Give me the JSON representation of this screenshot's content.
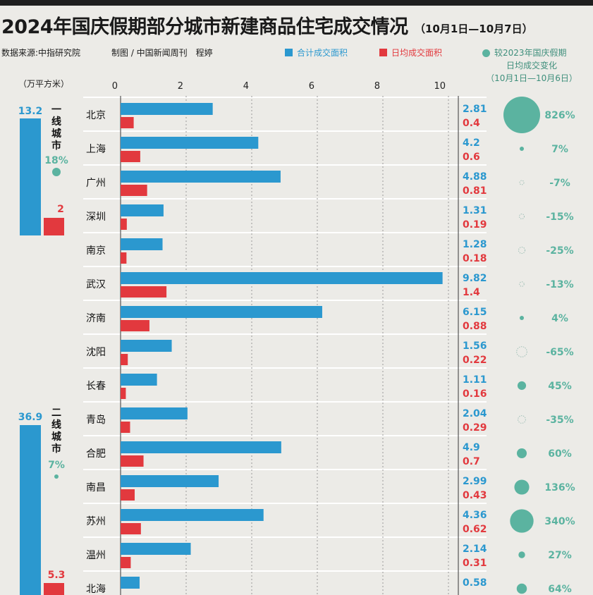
{
  "title": "2024年国庆假期部分城市新建商品住宅成交情况",
  "subtitle": "（10月1日—10月7日）",
  "source": "数据来源:中指研究院",
  "credit": "制图 / 中国新闻周刊　程婷",
  "legend": {
    "total": "合计成交面积",
    "daily": "日均成交面积",
    "change_line1": "较2023年国庆假期",
    "change_line2": "日均成交变化",
    "change_line3": "（10月1日—10月6日）"
  },
  "unit": "（万平方米）",
  "colors": {
    "total": "#2b98cf",
    "daily": "#e2393e",
    "change": "#5bb3a0"
  },
  "chart_data": {
    "type": "bar",
    "orientation": "horizontal",
    "x_ticks": [
      "0",
      "2",
      "4",
      "6",
      "8",
      "10"
    ],
    "xlim": [
      0,
      10
    ],
    "grid": true,
    "categories": [
      "北京",
      "上海",
      "广州",
      "深圳",
      "南京",
      "武汉",
      "济南",
      "沈阳",
      "长春",
      "青岛",
      "合肥",
      "南昌",
      "苏州",
      "温州",
      "北海"
    ],
    "series": [
      {
        "name": "合计成交面积",
        "values": [
          2.81,
          4.2,
          4.88,
          1.31,
          1.28,
          9.82,
          6.15,
          1.56,
          1.11,
          2.04,
          4.9,
          2.99,
          4.36,
          2.14,
          0.58
        ]
      },
      {
        "name": "日均成交面积",
        "values": [
          0.4,
          0.6,
          0.81,
          0.19,
          0.18,
          1.4,
          0.88,
          0.22,
          0.16,
          0.29,
          0.7,
          0.43,
          0.62,
          0.31,
          null
        ]
      }
    ],
    "change": {
      "name": "较2023年国庆假期日均成交变化",
      "labels": [
        "826%",
        "7%",
        "-7%",
        "-15%",
        "-25%",
        "-13%",
        "4%",
        "-65%",
        "45%",
        "-35%",
        "60%",
        "136%",
        "340%",
        "27%",
        "64%"
      ],
      "values": [
        826,
        7,
        -7,
        -15,
        -25,
        -13,
        4,
        -65,
        45,
        -35,
        60,
        136,
        340,
        27,
        64
      ]
    },
    "tier_summary": [
      {
        "label": "一线城市",
        "total": "13.2",
        "daily": "2",
        "change": "18%"
      },
      {
        "label": "二线城市",
        "total": "36.9",
        "daily": "5.3",
        "change": "7%"
      }
    ]
  }
}
